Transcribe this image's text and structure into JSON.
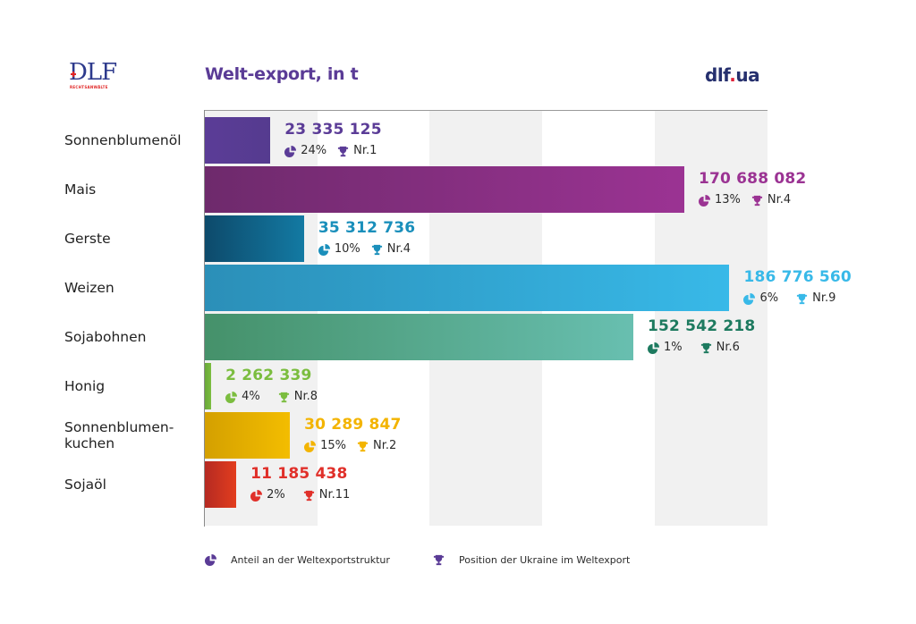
{
  "header": {
    "logo_text": "DLF",
    "logo_subtext": "RECHTSANWÄLTE",
    "title": "Welt-export, in t",
    "brand_prefix": "dlf",
    "brand_dot": ".",
    "brand_suffix": "ua"
  },
  "colors": {
    "title": "#5a3b96",
    "brand": "#26306e",
    "brand_dot": "#e0243a",
    "band_grey": "#f1f1f1"
  },
  "legend": {
    "share_icon": "pie-chart-icon",
    "share_label": "Anteil an der Weltexportstruktur",
    "rank_icon": "trophy-icon",
    "rank_label": "Position der Ukraine im Weltexport",
    "icon_color": "#5a3b96"
  },
  "chart_data": {
    "type": "bar",
    "orientation": "horizontal",
    "title": "Welt-export, in t",
    "xlabel": "",
    "ylabel": "",
    "xlim": [
      0,
      200000000
    ],
    "grid": "alternating vertical bands",
    "legend_position": "bottom",
    "categories": [
      "Sonnenblumenöl",
      "Mais",
      "Gerste",
      "Weizen",
      "Sojabohnen",
      "Honig",
      "Sonnenblumen-kuchen",
      "Sojaöl"
    ],
    "category_lines": [
      [
        "Sonnenblumenöl"
      ],
      [
        "Mais"
      ],
      [
        "Gerste"
      ],
      [
        "Weizen"
      ],
      [
        "Sojabohnen"
      ],
      [
        "Honig"
      ],
      [
        "Sonnenblumen-",
        "kuchen"
      ],
      [
        "Sojaöl"
      ]
    ],
    "values": [
      23335125,
      170688082,
      35312736,
      186776560,
      152542218,
      2262339,
      30289847,
      11185438
    ],
    "value_labels": [
      "23 335 125",
      "170 688 082",
      "35 312 736",
      "186 776 560",
      "152 542 218",
      "2 262 339",
      "30 289 847",
      "11 185 438"
    ],
    "share_labels": [
      "24%",
      "13%",
      "10%",
      "6%",
      "1%",
      "4%",
      "15%",
      "2%"
    ],
    "rank_labels": [
      "Nr.1",
      "Nr.4",
      "Nr.4",
      "Nr.9",
      "Nr.6",
      "Nr.8",
      "Nr.2",
      "Nr.11"
    ],
    "bar_colors": [
      [
        "#5b3c97",
        "#553b8f"
      ],
      [
        "#6e2a6c",
        "#9b3393"
      ],
      [
        "#0d4a6b",
        "#137aa3"
      ],
      [
        "#2b8fb8",
        "#38b9e8"
      ],
      [
        "#45916a",
        "#68bfb0"
      ],
      [
        "#6aa83a",
        "#7bbd3f"
      ],
      [
        "#d4a000",
        "#f3bd00"
      ],
      [
        "#b52a22",
        "#e23d1e"
      ]
    ],
    "label_colors": [
      "#5b3c97",
      "#9b3393",
      "#1a8fbb",
      "#38b9e8",
      "#1d7a5f",
      "#7bbd3f",
      "#f3b400",
      "#e0302a"
    ]
  }
}
